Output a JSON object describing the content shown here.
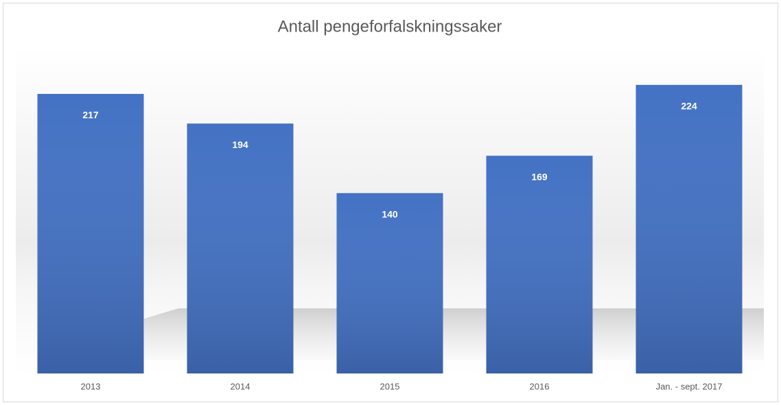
{
  "chart_data": {
    "type": "bar",
    "title": "Antall pengeforfalskningssaker",
    "categories": [
      "2013",
      "2014",
      "2015",
      "2016",
      "Jan. - sept. 2017"
    ],
    "values": [
      217,
      194,
      140,
      169,
      224
    ],
    "color": "#4472c4"
  }
}
